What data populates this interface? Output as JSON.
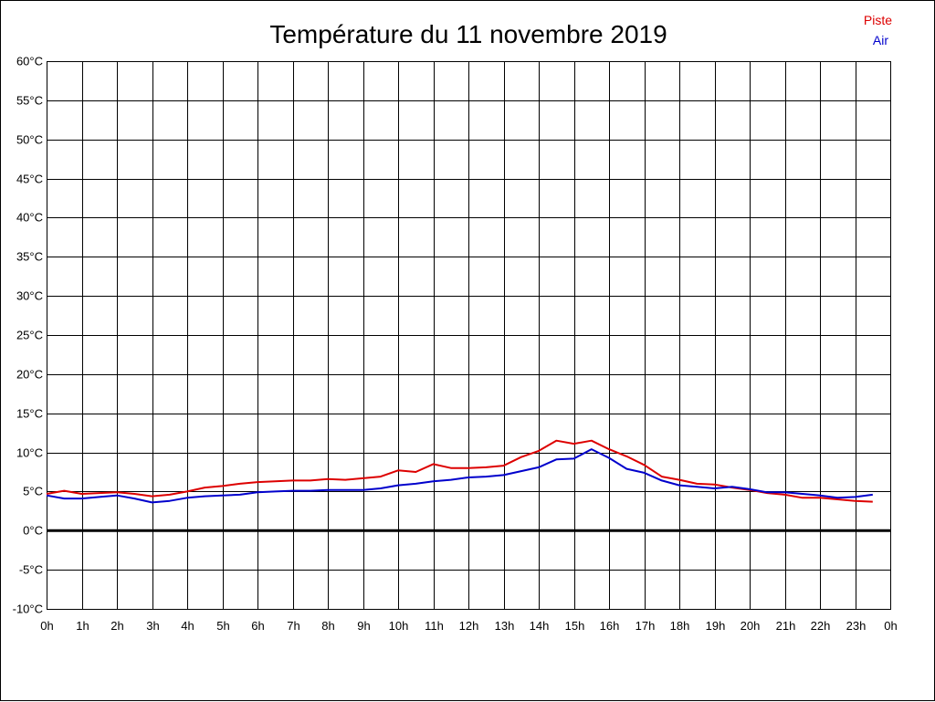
{
  "chart_data": {
    "type": "line",
    "title": "Température du 11 novembre 2019",
    "xlabel": "",
    "ylabel": "",
    "x_unit": "hour",
    "xlim": [
      0,
      24
    ],
    "ylim": [
      -10,
      60
    ],
    "y_ticks": [
      -10,
      -5,
      0,
      5,
      10,
      15,
      20,
      25,
      30,
      35,
      40,
      45,
      50,
      55,
      60
    ],
    "y_tick_labels": [
      "-10°C",
      "-5°C",
      "0°C",
      "5°C",
      "10°C",
      "15°C",
      "20°C",
      "25°C",
      "30°C",
      "35°C",
      "40°C",
      "45°C",
      "50°C",
      "55°C",
      "60°C"
    ],
    "x_ticks": [
      0,
      1,
      2,
      3,
      4,
      5,
      6,
      7,
      8,
      9,
      10,
      11,
      12,
      13,
      14,
      15,
      16,
      17,
      18,
      19,
      20,
      21,
      22,
      23,
      24
    ],
    "x_tick_labels": [
      "0h",
      "1h",
      "2h",
      "3h",
      "4h",
      "5h",
      "6h",
      "7h",
      "8h",
      "9h",
      "10h",
      "11h",
      "12h",
      "13h",
      "14h",
      "15h",
      "16h",
      "17h",
      "18h",
      "19h",
      "20h",
      "21h",
      "22h",
      "23h",
      "0h"
    ],
    "grid": true,
    "legend_position": "top-right",
    "zero_line": true,
    "x": [
      0,
      0.5,
      1,
      1.5,
      2,
      2.5,
      3,
      3.5,
      4,
      4.5,
      5,
      5.5,
      6,
      6.5,
      7,
      7.5,
      8,
      8.5,
      9,
      9.5,
      10,
      10.5,
      11,
      11.5,
      12,
      12.5,
      13,
      13.5,
      14,
      14.5,
      15,
      15.5,
      16,
      16.5,
      17,
      17.5,
      18,
      18.5,
      19,
      19.5,
      20,
      20.5,
      21,
      21.5,
      22,
      22.5,
      23,
      23.5
    ],
    "series": [
      {
        "name": "Piste",
        "color": "#dd0000",
        "values": [
          4.7,
          5.1,
          4.7,
          4.8,
          4.9,
          4.7,
          4.4,
          4.6,
          5.0,
          5.5,
          5.7,
          6.0,
          6.2,
          6.3,
          6.4,
          6.4,
          6.6,
          6.5,
          6.7,
          6.9,
          7.7,
          7.5,
          8.5,
          8.0,
          8.0,
          8.1,
          8.3,
          9.4,
          10.2,
          11.5,
          11.1,
          11.5,
          10.4,
          9.5,
          8.4,
          6.9,
          6.5,
          6.0,
          5.9,
          5.5,
          5.2,
          4.8,
          4.6,
          4.2,
          4.2,
          4.0,
          3.8,
          3.7
        ]
      },
      {
        "name": "Air",
        "color": "#0000cc",
        "values": [
          4.5,
          4.1,
          4.1,
          4.3,
          4.5,
          4.1,
          3.6,
          3.8,
          4.2,
          4.4,
          4.5,
          4.6,
          4.9,
          5.0,
          5.1,
          5.1,
          5.2,
          5.2,
          5.2,
          5.4,
          5.8,
          6.0,
          6.3,
          6.5,
          6.8,
          6.9,
          7.1,
          7.6,
          8.1,
          9.1,
          9.2,
          10.4,
          9.3,
          7.9,
          7.4,
          6.4,
          5.8,
          5.6,
          5.4,
          5.6,
          5.3,
          4.9,
          4.9,
          4.7,
          4.5,
          4.2,
          4.3,
          4.6
        ]
      }
    ]
  }
}
